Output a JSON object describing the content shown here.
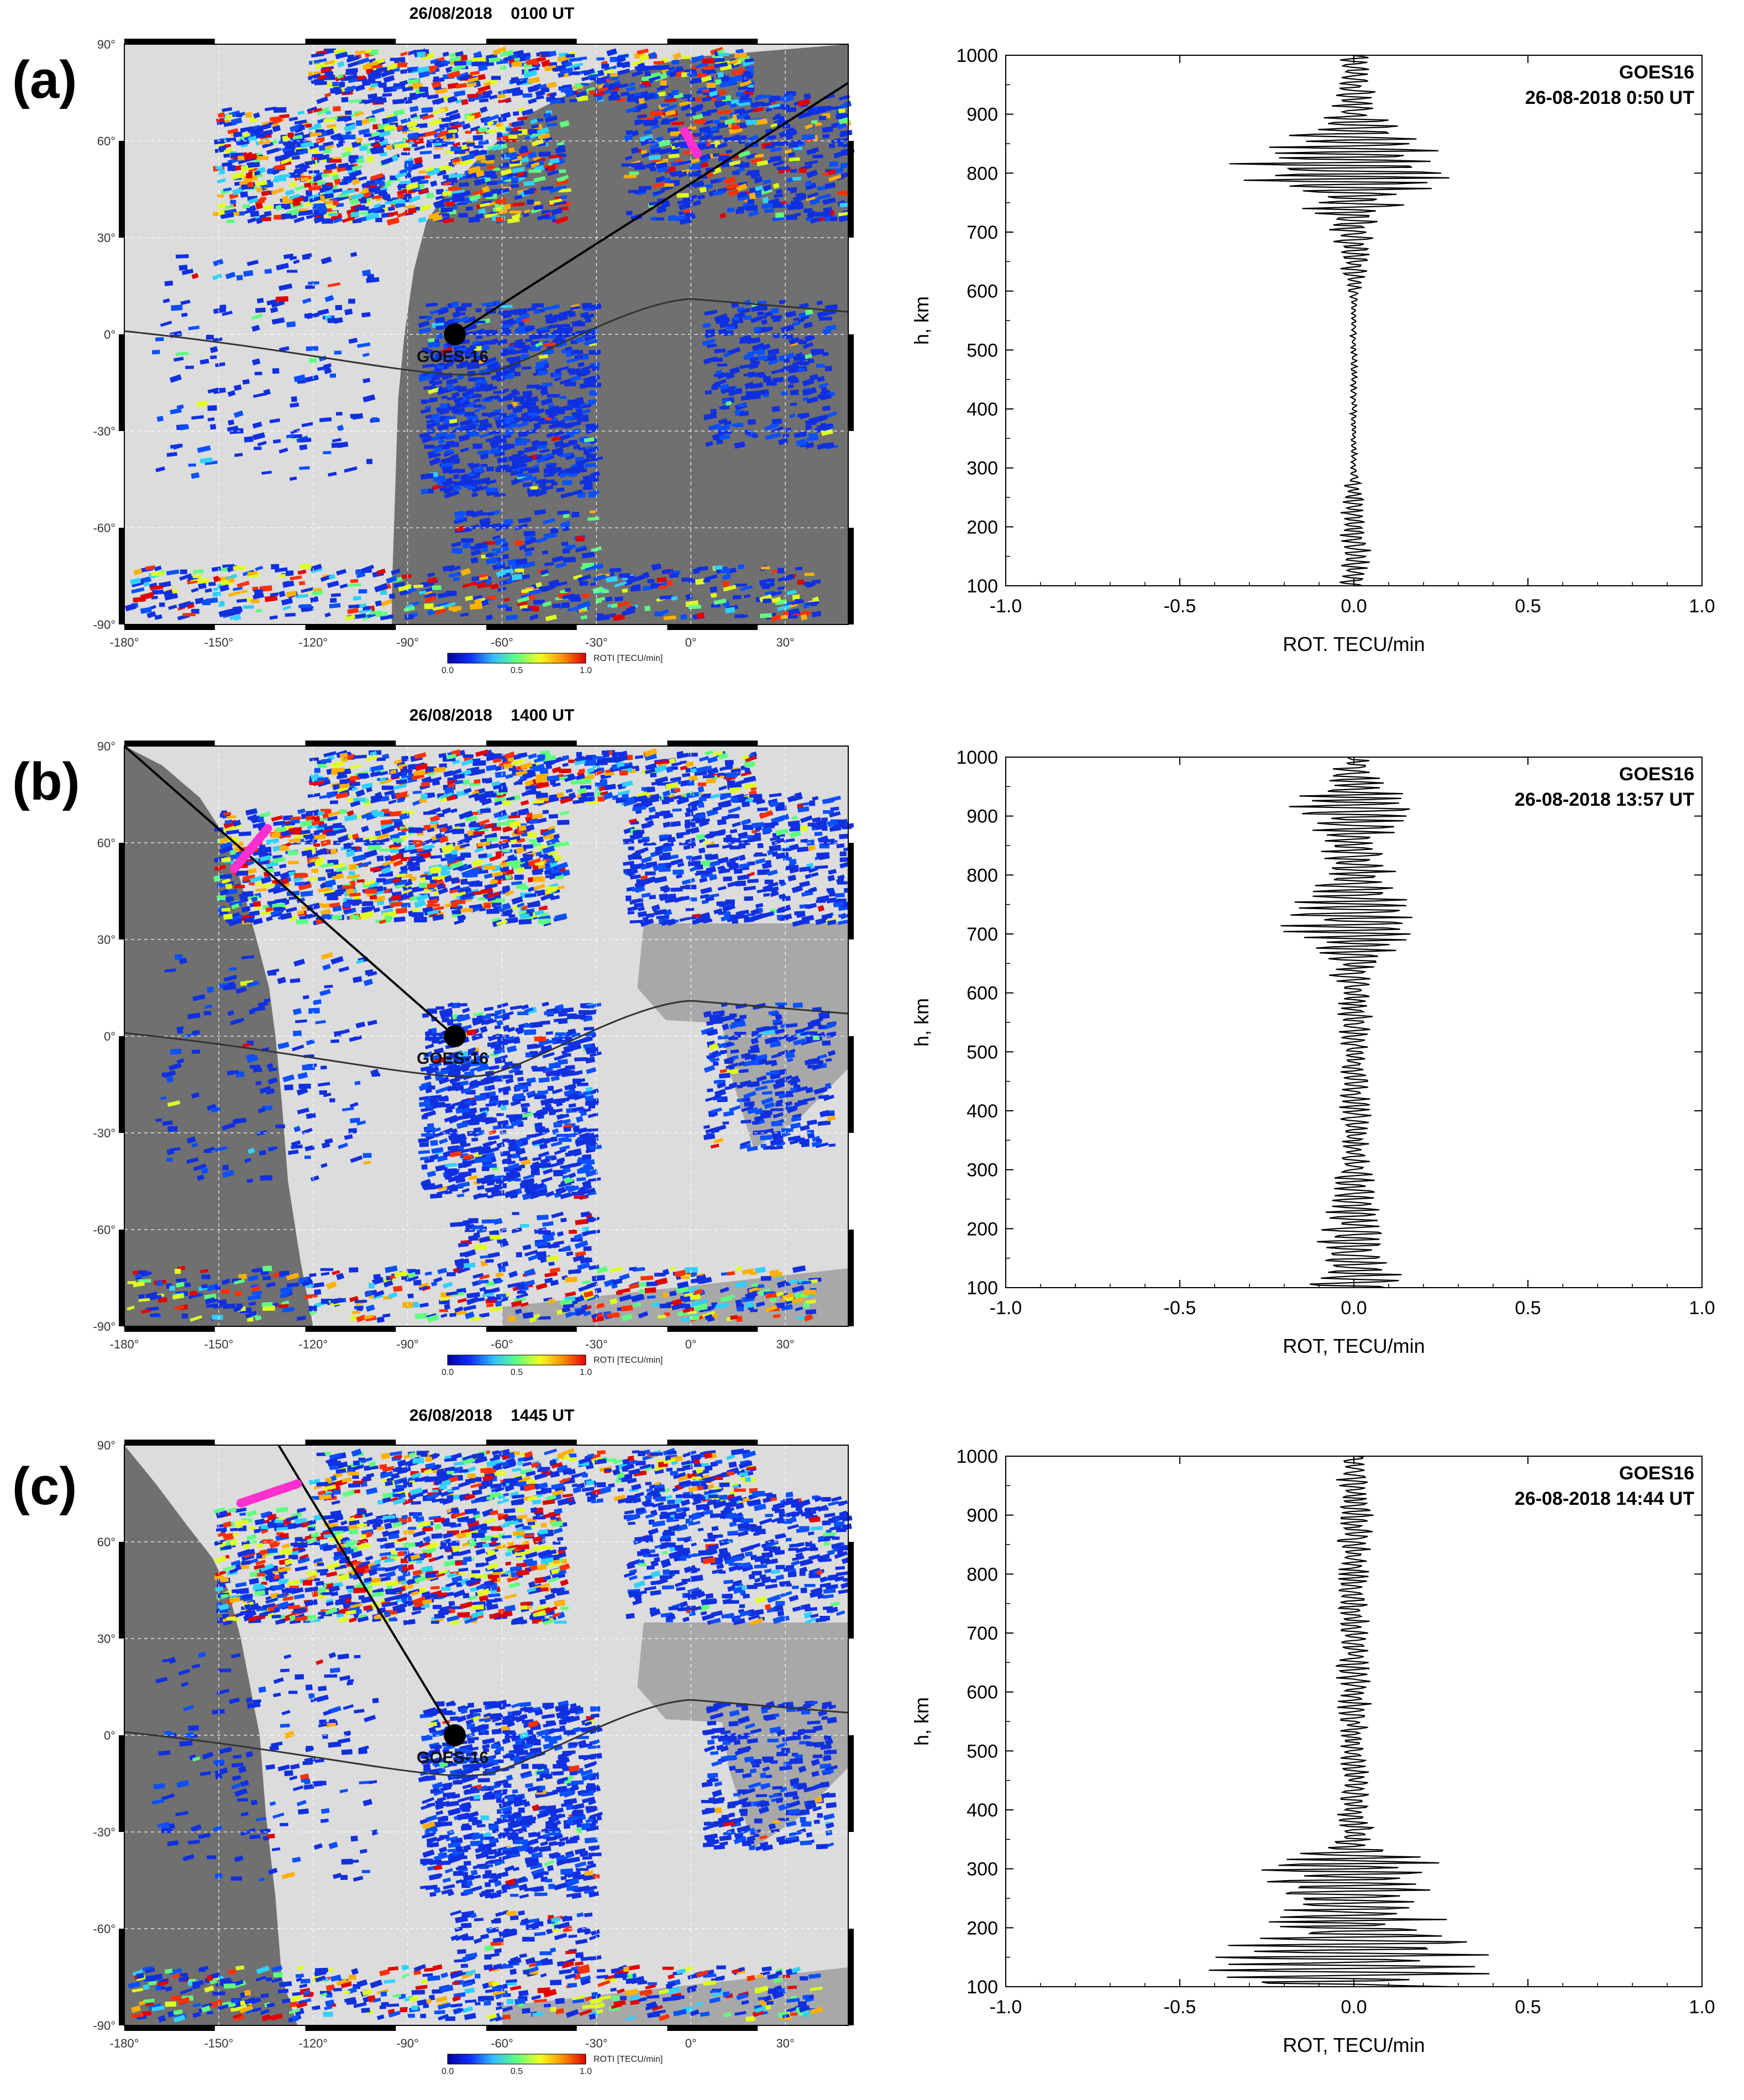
{
  "panels": [
    {
      "letter": "(a)",
      "map_title": "26/08/2018    0100 UT",
      "profile": {
        "satellite": "GOES16",
        "timestamp": "26-08-2018 0:50 UT",
        "xlabel": "ROT. TECU/min",
        "seed": 11,
        "envelope": [
          [
            100,
            0.05
          ],
          [
            200,
            0.05
          ],
          [
            260,
            0.04
          ],
          [
            300,
            0.01
          ],
          [
            580,
            0.01
          ],
          [
            650,
            0.05
          ],
          [
            700,
            0.07
          ],
          [
            760,
            0.2
          ],
          [
            800,
            0.45
          ],
          [
            850,
            0.25
          ],
          [
            900,
            0.09
          ],
          [
            950,
            0.06
          ],
          [
            1000,
            0.06
          ]
        ]
      }
    },
    {
      "letter": "(b)",
      "map_title": "26/08/2018    1400 UT",
      "profile": {
        "satellite": "GOES16",
        "timestamp": "26-08-2018 13:57 UT",
        "xlabel": "ROT, TECU/min",
        "seed": 23,
        "envelope": [
          [
            100,
            0.17
          ],
          [
            150,
            0.12
          ],
          [
            200,
            0.1
          ],
          [
            300,
            0.06
          ],
          [
            400,
            0.05
          ],
          [
            500,
            0.05
          ],
          [
            600,
            0.06
          ],
          [
            650,
            0.08
          ],
          [
            720,
            0.25
          ],
          [
            780,
            0.14
          ],
          [
            850,
            0.1
          ],
          [
            920,
            0.22
          ],
          [
            960,
            0.1
          ],
          [
            1000,
            0.04
          ]
        ]
      }
    },
    {
      "letter": "(c)",
      "map_title": "26/08/2018    1445 UT",
      "profile": {
        "satellite": "GOES16",
        "timestamp": "26-08-2018 14:44 UT",
        "xlabel": "ROT, TECU/min",
        "seed": 37,
        "envelope": [
          [
            100,
            0.4
          ],
          [
            150,
            0.45
          ],
          [
            200,
            0.28
          ],
          [
            250,
            0.24
          ],
          [
            300,
            0.35
          ],
          [
            340,
            0.08
          ],
          [
            400,
            0.05
          ],
          [
            500,
            0.04
          ],
          [
            600,
            0.06
          ],
          [
            700,
            0.05
          ],
          [
            800,
            0.05
          ],
          [
            900,
            0.07
          ],
          [
            1000,
            0.04
          ]
        ]
      }
    }
  ],
  "map_axes": {
    "lon_ticks": [
      "-180°",
      "-150°",
      "-120°",
      "-90°",
      "-60°",
      "-30°",
      "0°",
      "30°"
    ],
    "lat_ticks": [
      "90°",
      "60°",
      "30°",
      "0°",
      "-30°",
      "-60°",
      "-90°"
    ]
  },
  "station_label": "GOES-16",
  "colorbar": {
    "ticks": [
      "0.0",
      "0.5",
      "1.0"
    ],
    "label": "ROTI [TECU/min]"
  },
  "colors": {
    "night": "#707070",
    "day": "#dcdcdc",
    "land_day": "#a8a8a8",
    "roti_low": "#1030e0",
    "track": "#ff2fd0"
  },
  "profile_axes": {
    "ylabel": "h, km",
    "y_ticks": [
      100,
      200,
      300,
      400,
      500,
      600,
      700,
      800,
      900,
      1000
    ],
    "x_tick_labels": [
      "-1.0",
      "-0.5",
      "0.0",
      "0.5",
      "1.0"
    ]
  }
}
